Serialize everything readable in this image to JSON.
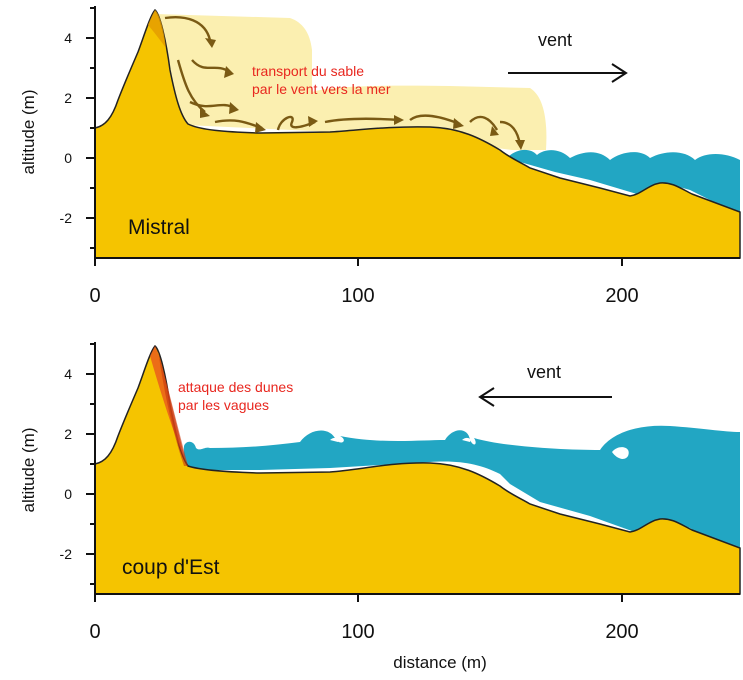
{
  "panels": [
    {
      "label": "Mistral",
      "wind_label": "vent",
      "wind_direction": "right",
      "annotation": [
        "transport du sable",
        "par le vent vers la mer"
      ]
    },
    {
      "label": "coup d'Est",
      "wind_label": "vent",
      "wind_direction": "left",
      "annotation": [
        "attaque des dunes",
        "par les vagues"
      ]
    }
  ],
  "y_axis_label": "altitude (m)",
  "x_axis_label": "distance (m)",
  "y_ticks": [
    "4",
    "2",
    "0",
    "-2"
  ],
  "x_ticks": [
    "0",
    "100",
    "200"
  ],
  "colors": {
    "sand": "#f5c400",
    "sea": "#22a6c3",
    "blown_sand": "#fbefb0",
    "arrow": "#7a5a14",
    "annotation": "#e8271f"
  }
}
